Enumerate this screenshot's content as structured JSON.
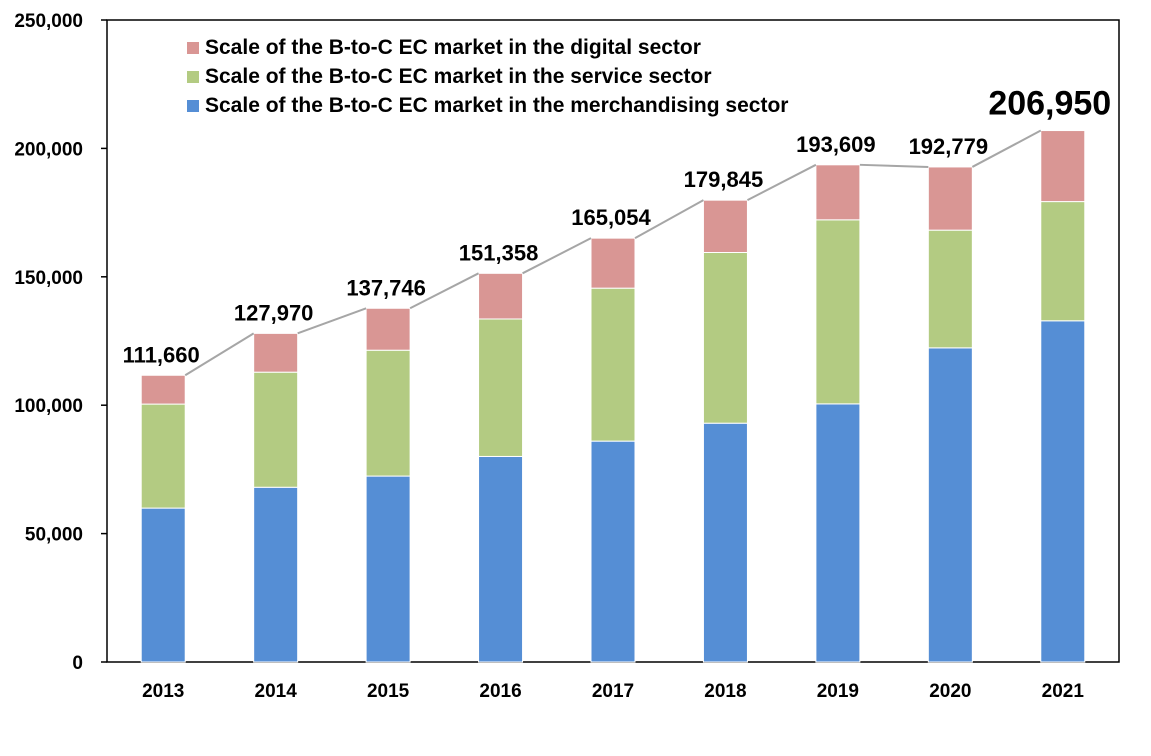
{
  "chart_data": {
    "type": "bar",
    "stacked": true,
    "categories": [
      "2013",
      "2014",
      "2015",
      "2016",
      "2017",
      "2018",
      "2019",
      "2020",
      "2021"
    ],
    "series": [
      {
        "name": "Scale of the B-to-C EC market in the merchandising sector",
        "color": "#558ed5",
        "values": [
          59931,
          68043,
          72398,
          80043,
          86008,
          92992,
          100515,
          122333,
          132865
        ]
      },
      {
        "name": "Scale of the B-to-C EC market in the service sector",
        "color": "#b3cb82",
        "values": [
          40500,
          44816,
          49014,
          53532,
          59568,
          66471,
          71672,
          45832,
          46424
        ]
      },
      {
        "name": "Scale of the B-to-C EC market in the digital sector",
        "color": "#d99694",
        "values": [
          11229,
          15111,
          16334,
          17783,
          19478,
          20382,
          21422,
          24614,
          27661
        ]
      }
    ],
    "totals": [
      "111,660",
      "127,970",
      "137,746",
      "151,358",
      "165,054",
      "179,845",
      "193,609",
      "192,779",
      "206,950"
    ],
    "total_line_color": "#a6a6a6",
    "legend_order": [
      2,
      1,
      0
    ],
    "legend_position": "top-left",
    "title": "",
    "xlabel": "",
    "ylabel": "",
    "ylim": [
      0,
      250000
    ],
    "yticks": [
      "0",
      "50,000",
      "100,000",
      "150,000",
      "200,000",
      "250,000"
    ],
    "grid": false
  }
}
